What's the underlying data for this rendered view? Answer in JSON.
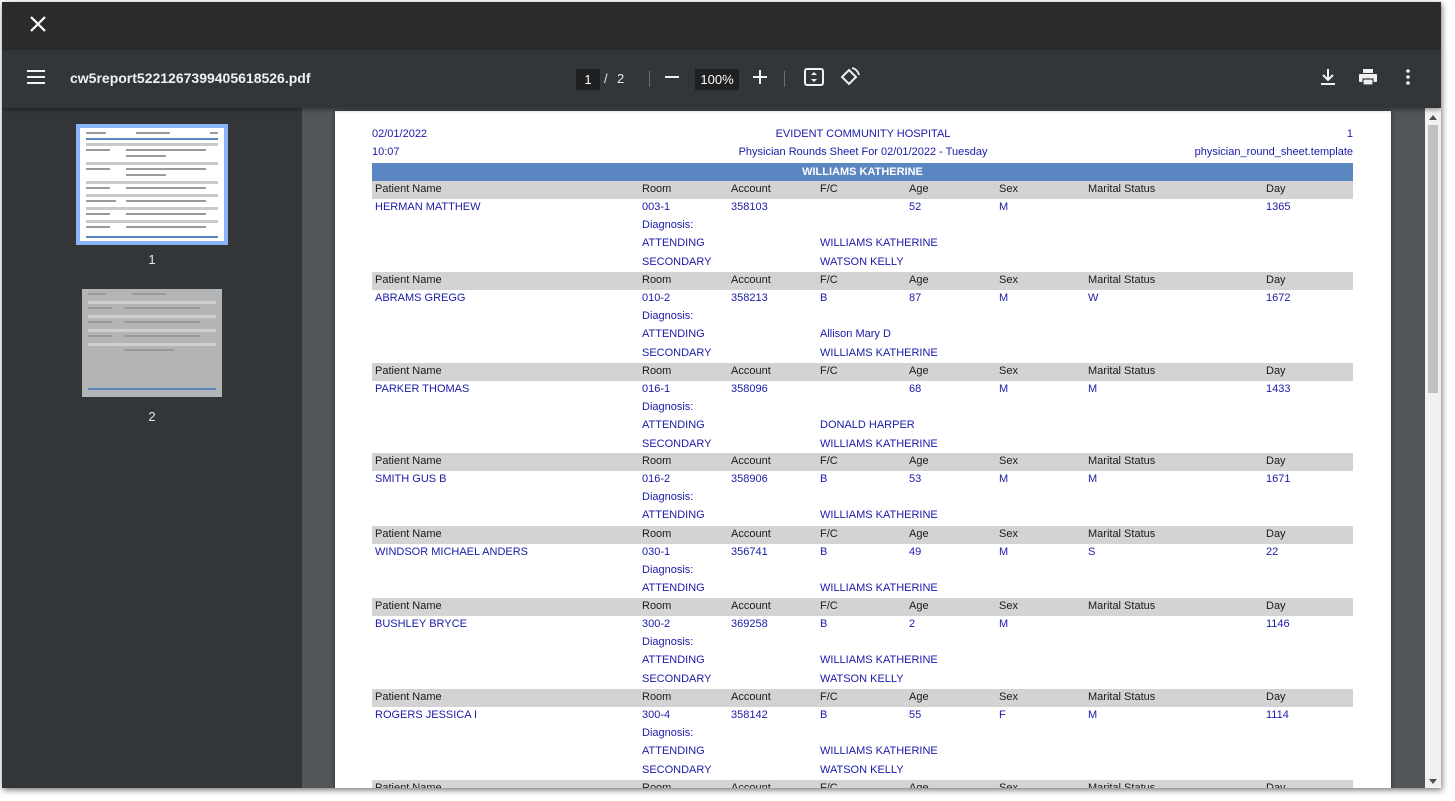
{
  "window": {
    "file_name": "cw5report5221267399405618526.pdf",
    "current_page": "1",
    "page_separator": "/",
    "total_pages": "2",
    "zoom": "100%"
  },
  "icons": [
    "close-icon",
    "menu-icon",
    "minus-icon",
    "plus-icon",
    "fit-page-icon",
    "rotate-icon",
    "download-icon",
    "print-icon",
    "more-vert-icon"
  ],
  "sidebar": {
    "thumbnails": [
      {
        "label": "1"
      },
      {
        "label": "2"
      }
    ]
  },
  "report": {
    "date": "02/01/2022",
    "time": "10:07",
    "hospital": "EVIDENT COMMUNITY HOSPITAL",
    "subtitle": "Physician Rounds Sheet For 02/01/2022 - Tuesday",
    "page_no": "1",
    "template": "physician_round_sheet.template",
    "physician": "WILLIAMS KATHERINE",
    "columns": [
      "Patient Name",
      "Room",
      "Account",
      "F/C",
      "Age",
      "Sex",
      "Marital Status",
      "Day"
    ],
    "diagnosis_label": "Diagnosis:",
    "attending_label": "ATTENDING",
    "secondary_label": "SECONDARY",
    "patients": [
      {
        "name": "HERMAN MATTHEW",
        "room": "003-1",
        "account": "358103",
        "fc": "",
        "age": "52",
        "sex": "M",
        "marital": "",
        "day": "1365",
        "attending": "WILLIAMS KATHERINE",
        "secondary": "WATSON KELLY"
      },
      {
        "name": "ABRAMS GREGG",
        "room": "010-2",
        "account": "358213",
        "fc": "B",
        "age": "87",
        "sex": "M",
        "marital": "W",
        "day": "1672",
        "attending": "Allison Mary D",
        "secondary": "WILLIAMS KATHERINE"
      },
      {
        "name": "PARKER THOMAS",
        "room": "016-1",
        "account": "358096",
        "fc": "",
        "age": "68",
        "sex": "M",
        "marital": "M",
        "day": "1433",
        "attending": "DONALD HARPER",
        "secondary": "WILLIAMS KATHERINE"
      },
      {
        "name": "SMITH GUS B",
        "room": "016-2",
        "account": "358906",
        "fc": "B",
        "age": "53",
        "sex": "M",
        "marital": "M",
        "day": "1671",
        "attending": "WILLIAMS KATHERINE",
        "secondary": null
      },
      {
        "name": "WINDSOR MICHAEL ANDERS",
        "room": "030-1",
        "account": "356741",
        "fc": "B",
        "age": "49",
        "sex": "M",
        "marital": "S",
        "day": "22",
        "attending": "WILLIAMS KATHERINE",
        "secondary": null
      },
      {
        "name": "BUSHLEY BRYCE",
        "room": "300-2",
        "account": "369258",
        "fc": "B",
        "age": "2",
        "sex": "M",
        "marital": "",
        "day": "1146",
        "attending": "WILLIAMS KATHERINE",
        "secondary": "WATSON KELLY"
      },
      {
        "name": "ROGERS JESSICA I",
        "room": "300-4",
        "account": "358142",
        "fc": "B",
        "age": "55",
        "sex": "F",
        "marital": "M",
        "day": "1114",
        "attending": "WILLIAMS KATHERINE",
        "secondary": "WATSON KELLY"
      }
    ]
  }
}
